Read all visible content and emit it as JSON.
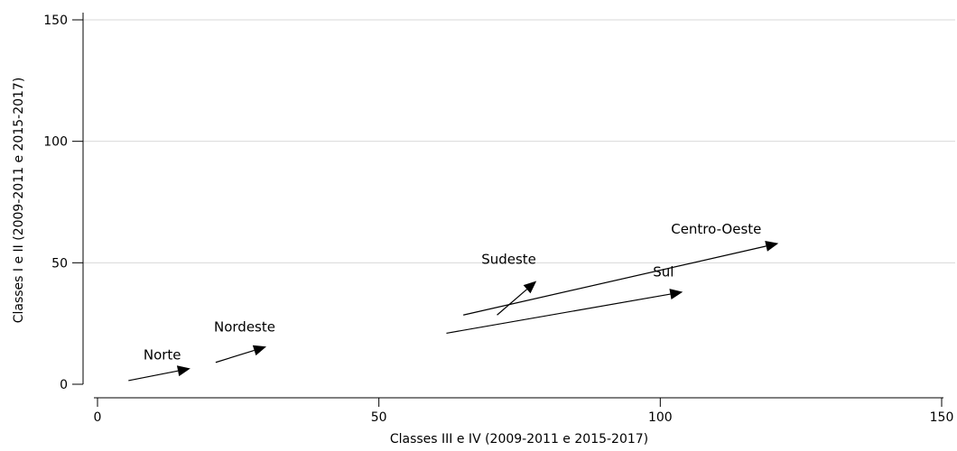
{
  "chart_data": {
    "type": "scatter",
    "title": "",
    "xlabel": "Classes III e IV (2009-2011 e 2015-2017)",
    "ylabel": "Classes I e II (2009-2011 e 2015-2017)",
    "xlim": [
      0,
      150
    ],
    "ylim": [
      0,
      150
    ],
    "xticks": [
      0,
      50,
      100,
      150
    ],
    "yticks": [
      0,
      50,
      100,
      150
    ],
    "grid": true,
    "legend": "none",
    "series": [
      {
        "name": "Norte",
        "label": "Norte",
        "start": [
          5.5,
          1.5
        ],
        "end": [
          16.5,
          6.5
        ]
      },
      {
        "name": "Nordeste",
        "label": "Nordeste",
        "start": [
          21,
          9
        ],
        "end": [
          30,
          15.5
        ]
      },
      {
        "name": "Sudeste",
        "label": "Sudeste",
        "start": [
          71,
          28.5
        ],
        "end": [
          78,
          42.5
        ]
      },
      {
        "name": "Centro-Oeste",
        "label": "Centro-Oeste",
        "start": [
          65,
          28.5
        ],
        "end": [
          121,
          58
        ]
      },
      {
        "name": "Sul",
        "label": "Sul",
        "start": [
          62,
          21
        ],
        "end": [
          104,
          38
        ]
      }
    ]
  }
}
